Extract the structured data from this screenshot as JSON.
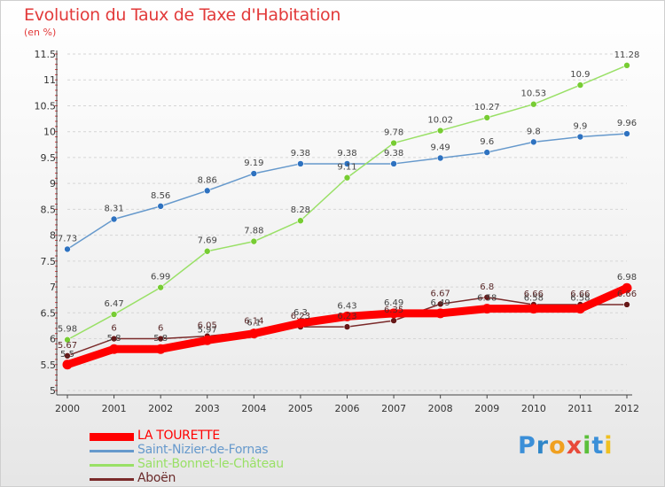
{
  "title": "Evolution du Taux de Taxe d'Habitation",
  "subtitle": "(en %)",
  "colors": {
    "title": "#e23a3a",
    "grid": "#d6d6d6",
    "axis": "#444444"
  },
  "chart_data": {
    "type": "line",
    "x": [
      "2000",
      "2001",
      "2002",
      "2003",
      "2004",
      "2005",
      "2006",
      "2007",
      "2008",
      "2009",
      "2010",
      "2011",
      "2012"
    ],
    "ylim": [
      5,
      11.5
    ],
    "yticks": [
      "5",
      "5.5",
      "6",
      "6.5",
      "7",
      "7.5",
      "8",
      "8.5",
      "9",
      "9.5",
      "10",
      "10.5",
      "11",
      "11.5"
    ],
    "grid": "horizontal",
    "legend_position": "bottom-left",
    "series": [
      {
        "name": "LA TOURETTE",
        "color": "#ff0000",
        "marker": "#ff0000",
        "values": [
          5.5,
          5.8,
          5.8,
          5.97,
          6.1,
          6.3,
          6.43,
          6.49,
          6.49,
          6.58,
          6.58,
          6.58,
          6.98
        ],
        "labels": [
          "5.5",
          "5.8",
          "5.8",
          "5.97",
          "6.1",
          "6.3",
          "6.43",
          "6.49",
          "6.49",
          "6.58",
          "6.58",
          "6.58",
          "6.98"
        ]
      },
      {
        "name": "Saint-Nizier-de-Fornas",
        "color": "#6699cc",
        "marker": "#2e72c0",
        "values": [
          7.73,
          8.31,
          8.56,
          8.86,
          9.19,
          9.38,
          9.38,
          9.38,
          9.49,
          9.6,
          9.8,
          9.9,
          9.96
        ],
        "labels": [
          "7.73",
          "8.31",
          "8.56",
          "8.86",
          "9.19",
          "9.38",
          "9.38",
          "9.38",
          "9.49",
          "9.6",
          "9.8",
          "9.9",
          "9.96"
        ]
      },
      {
        "name": "Saint-Bonnet-le-Château",
        "color": "#99e066",
        "marker": "#77cc33",
        "values": [
          5.98,
          6.47,
          6.99,
          7.69,
          7.88,
          8.28,
          9.11,
          9.78,
          10.02,
          10.27,
          10.53,
          10.9,
          11.28
        ],
        "labels": [
          "5.98",
          "6.47",
          "6.99",
          "7.69",
          "7.88",
          "8.28",
          "9.11",
          "9.78",
          "10.02",
          "10.27",
          "10.53",
          "10.9",
          "11.28"
        ]
      },
      {
        "name": "Aboën",
        "color": "#7a2a2a",
        "marker": "#661818",
        "values": [
          5.67,
          6.0,
          6.0,
          6.05,
          6.14,
          6.23,
          6.23,
          6.35,
          6.67,
          6.8,
          6.66,
          6.66,
          6.66
        ],
        "labels": [
          "5.67",
          "6",
          "6",
          "6.05",
          "6.14",
          "6.23",
          "6.23",
          "6.35",
          "6.67",
          "6.8",
          "6.66",
          "6.66",
          "6.66"
        ]
      }
    ]
  },
  "logo": {
    "letters": [
      "P",
      "r",
      "o",
      "x",
      "i",
      "t",
      "i"
    ],
    "colors": [
      "#3b8fd8",
      "#2f86c8",
      "#f0a020",
      "#e84a3a",
      "#5bbf3a",
      "#3b8fd8",
      "#f0c020"
    ]
  }
}
